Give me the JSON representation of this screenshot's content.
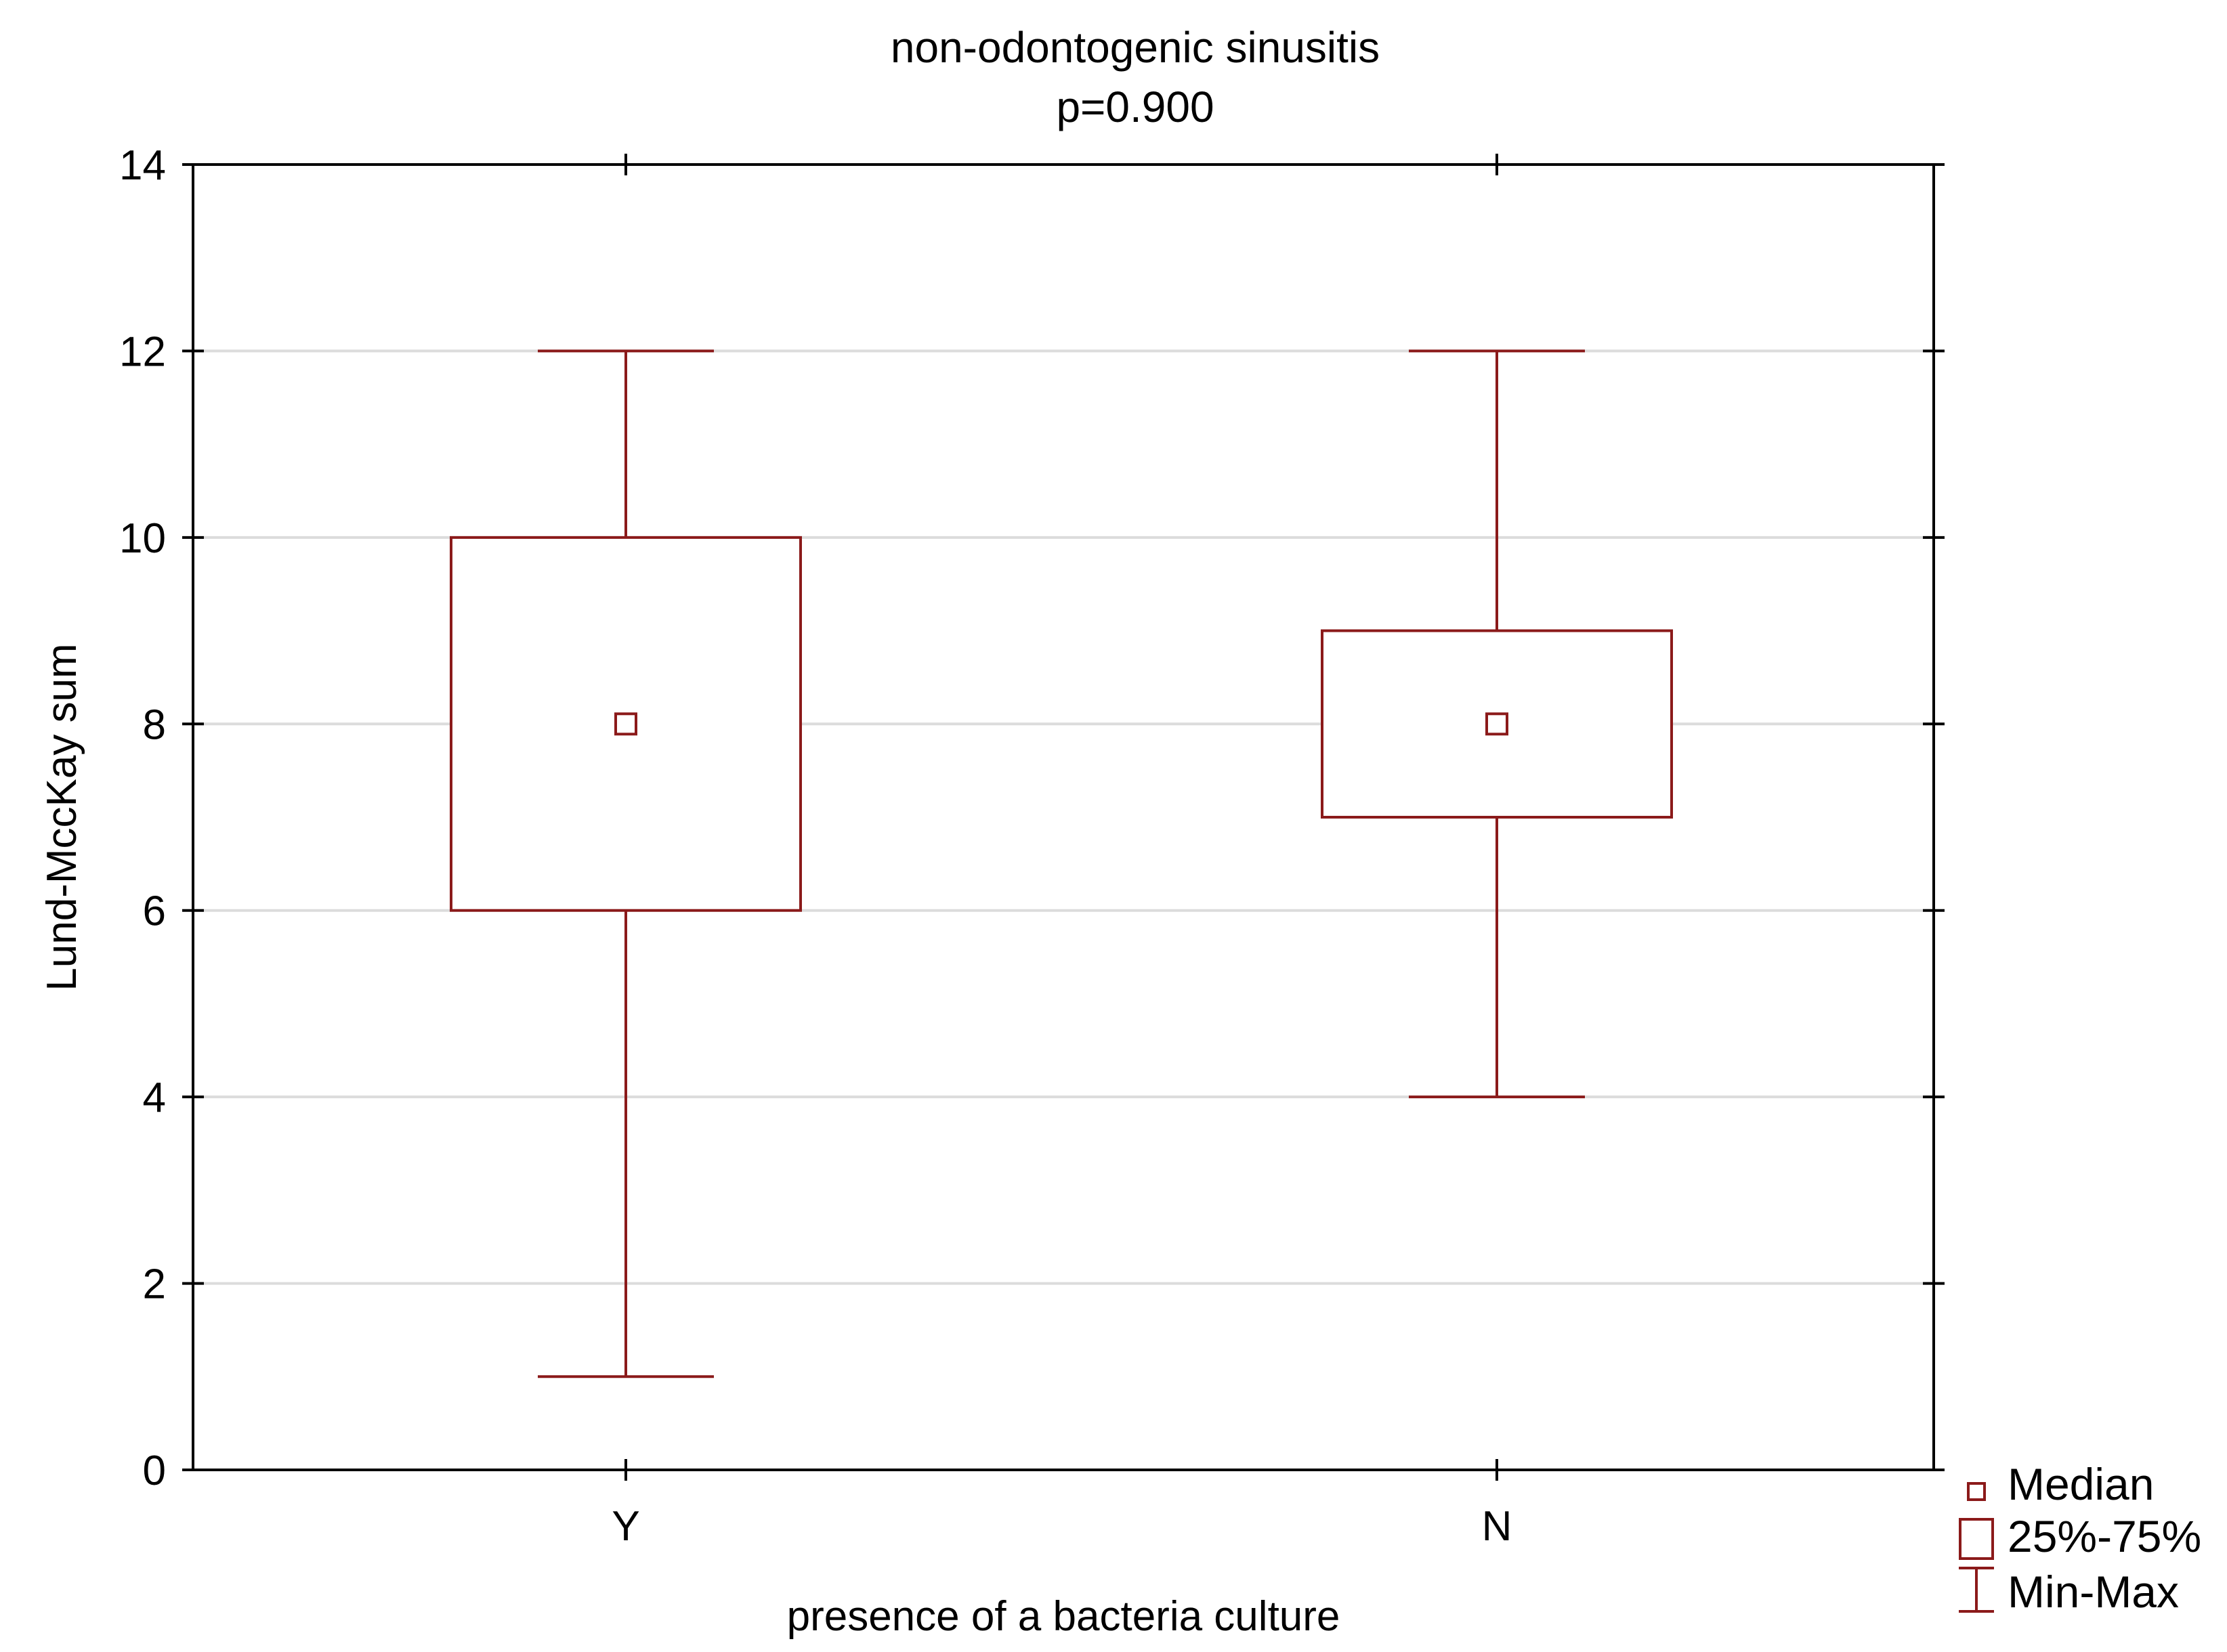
{
  "chart_data": {
    "type": "box",
    "title": "non-odontogenic sinusitis",
    "subtitle": "p=0.900",
    "xlabel": "presence of a bacteria culture",
    "ylabel": "Lund-MccKay sum",
    "ylim": [
      0,
      14
    ],
    "yticks": [
      0,
      2,
      4,
      6,
      8,
      10,
      12,
      14
    ],
    "grid": true,
    "legend_position": "bottom-right, outside plot",
    "categories": [
      "Y",
      "N"
    ],
    "boxes": [
      {
        "category": "Y",
        "min": 1,
        "q1": 6,
        "median": 8,
        "q3": 10,
        "max": 12
      },
      {
        "category": "N",
        "min": 4,
        "q1": 7,
        "median": 8,
        "q3": 9,
        "max": 12
      }
    ],
    "legend": [
      {
        "symbol": "median",
        "label": "Median"
      },
      {
        "symbol": "box",
        "label": "25%-75%"
      },
      {
        "symbol": "whisker",
        "label": "Min-Max"
      }
    ],
    "colors": {
      "marks": "#8b1a1a",
      "grid": "#dcdcdc",
      "axis": "#000000"
    }
  }
}
